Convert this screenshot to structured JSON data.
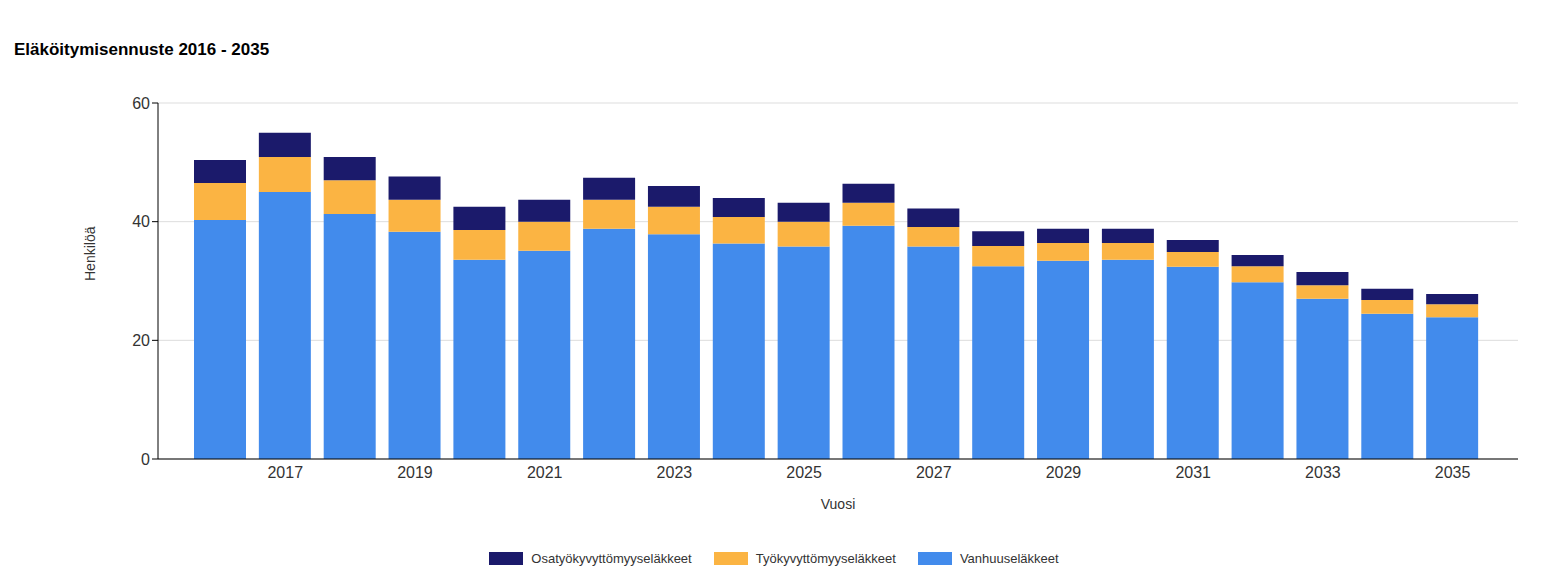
{
  "chart_data": {
    "type": "bar",
    "title": "Eläköitymisennuste 2016 - 2035",
    "x_label": "Vuosi",
    "y_label": "Henkilöä",
    "stacked": true,
    "grid": true,
    "legend": "bottom",
    "categories": [
      null,
      "2017",
      null,
      "2019",
      null,
      "2021",
      null,
      "2023",
      null,
      "2025",
      null,
      "2027",
      null,
      "2029",
      null,
      "2031",
      null,
      "2033",
      null,
      "2035"
    ],
    "ylim": [
      0,
      60
    ],
    "yticks": [
      0,
      20,
      40,
      60
    ],
    "series": [
      {
        "name": "Osatyökyvyttömyyseläkkeet",
        "color": "#1b1a6b",
        "values": [
          3.9,
          4.1,
          3.9,
          3.9,
          3.9,
          3.7,
          3.7,
          3.5,
          3.2,
          3.2,
          3.2,
          3.1,
          2.5,
          2.4,
          2.4,
          2.0,
          1.9,
          2.2,
          1.9,
          1.7
        ]
      },
      {
        "name": "Työkyvyttömyyseläkkeet",
        "color": "#fbb443",
        "values": [
          6.2,
          5.9,
          5.7,
          5.4,
          5.0,
          4.9,
          4.9,
          4.6,
          4.5,
          4.2,
          3.9,
          3.3,
          3.4,
          3.0,
          2.8,
          2.5,
          2.7,
          2.3,
          2.3,
          2.2
        ]
      },
      {
        "name": "Vanhuuseläkkeet",
        "color": "#428bec",
        "values": [
          40.3,
          45.0,
          41.3,
          38.3,
          33.6,
          35.1,
          38.8,
          37.9,
          36.3,
          35.8,
          39.3,
          35.8,
          32.5,
          33.4,
          33.6,
          32.4,
          29.8,
          27.0,
          24.5,
          23.9
        ]
      }
    ]
  }
}
